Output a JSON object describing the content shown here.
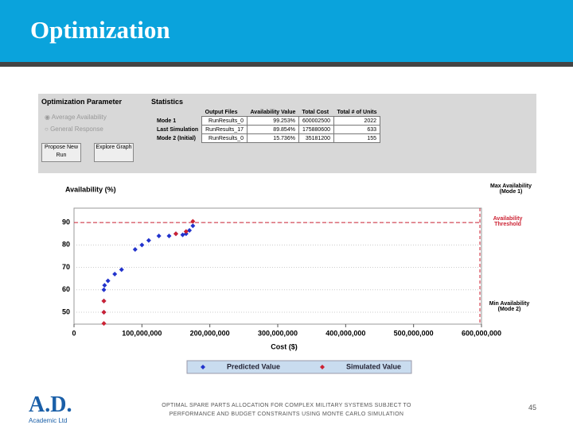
{
  "header": {
    "title": "Optimization"
  },
  "panel": {
    "parameter_title": "Optimization Parameter",
    "options": [
      "Average Availability",
      "General Response"
    ],
    "buttons": [
      "Propose New Run",
      "Explore Graph"
    ],
    "statistics_title": "Statistics",
    "table": {
      "columns": [
        "Output Files",
        "Availability Value",
        "Total Cost",
        "Total # of Units"
      ],
      "rows": [
        [
          "Mode 1",
          "RunResults_0",
          "99.253%",
          "600002500",
          "2022"
        ],
        [
          "Last Simulation",
          "RunResults_17",
          "89.854%",
          "175880600",
          "633"
        ],
        [
          "Mode 2 (Initial)",
          "RunResults_0",
          "15.736%",
          "35181200",
          "155"
        ]
      ]
    }
  },
  "chart_data": {
    "type": "scatter",
    "y_label": "Availability (%)",
    "x_label": "Cost ($)",
    "xlim": [
      0,
      600000000
    ],
    "xticks": [
      0,
      {
        "value": 100000000,
        "label": "100,000,000"
      },
      {
        "value": 200000000,
        "label": "200,000,000"
      },
      {
        "value": 300000000,
        "label": "300,000,000"
      },
      {
        "value": 400000000,
        "label": "400,000,000"
      },
      {
        "value": 500000000,
        "label": "500,000,000"
      },
      {
        "value": 600000000,
        "label": "600,000,000"
      }
    ],
    "ylim": [
      44.7,
      96.4
    ],
    "yticks": [
      50,
      60,
      70,
      80,
      90
    ],
    "threshold": 90,
    "annotations": [
      "Max Availability (Mode 1)",
      "Availability Threshold",
      "Min Availability (Mode 2)"
    ],
    "series": [
      {
        "name": "Predicted Value",
        "color": "#2233cc",
        "x": [
          44000000,
          44000000,
          44000000,
          45000000,
          50000000,
          60000000,
          70000000,
          90000000,
          100000000,
          110000000,
          125000000,
          140000000,
          150000000,
          160000000,
          165000000,
          170000000,
          175000000
        ],
        "values": [
          50,
          55,
          60,
          62,
          64,
          67,
          69,
          78,
          80,
          82,
          84,
          84,
          85,
          84.5,
          85,
          86.5,
          88.5
        ]
      },
      {
        "name": "Simulated Value",
        "color": "#cc2233",
        "x": [
          44000000,
          44000000,
          44000000,
          150000000,
          165000000,
          175000000
        ],
        "values": [
          45,
          50,
          55,
          85,
          86,
          90.5
        ]
      }
    ]
  },
  "footer": {
    "logo": "A.D.",
    "company": "Academic Ltd",
    "text": [
      "OPTIMAL SPARE PARTS ALLOCATION FOR COMPLEX MILITARY SYSTEMS SUBJECT TO",
      "PERFORMANCE AND BUDGET CONSTRAINTS USING MONTE CARLO SIMULATION"
    ],
    "page": "45"
  }
}
